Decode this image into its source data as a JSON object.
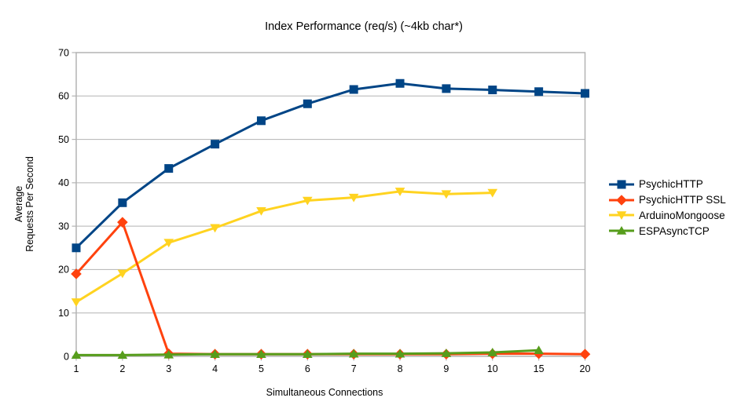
{
  "chart": {
    "title": "Index Performance (req/s) (~4kb char*)",
    "x_axis_title": "Simultaneous Connections",
    "y_axis_title_lines": [
      "Average",
      "Requests Per Second"
    ]
  },
  "chart_data": {
    "type": "line",
    "title": "Index Performance (req/s) (~4kb char*)",
    "xlabel": "Simultaneous Connections",
    "ylabel": "Average Requests Per Second",
    "categories": [
      "1",
      "2",
      "3",
      "4",
      "5",
      "6",
      "7",
      "8",
      "9",
      "10",
      "15",
      "20"
    ],
    "ylim": [
      0,
      70
    ],
    "y_ticks": [
      0,
      10,
      20,
      30,
      40,
      50,
      60,
      70
    ],
    "grid": "horizontal",
    "legend_position": "right",
    "series": [
      {
        "name": "PsychicHTTP",
        "color": "#004586",
        "marker": "square",
        "values": [
          25.0,
          35.4,
          43.3,
          48.9,
          54.3,
          58.2,
          61.5,
          62.9,
          61.7,
          61.4,
          61.0,
          60.6
        ]
      },
      {
        "name": "PsychicHTTP SSL",
        "color": "#ff420e",
        "marker": "diamond",
        "values": [
          19.0,
          30.9,
          0.6,
          0.5,
          0.5,
          0.5,
          0.5,
          0.5,
          0.5,
          0.6,
          0.6,
          0.5
        ]
      },
      {
        "name": "ArduinoMongoose",
        "color": "#ffd320",
        "marker": "triangle-down",
        "values": [
          12.5,
          19.1,
          26.2,
          29.6,
          33.5,
          35.9,
          36.6,
          38.0,
          37.4,
          37.7
        ]
      },
      {
        "name": "ESPAsyncTCP",
        "color": "#579d1c",
        "marker": "triangle-up",
        "values": [
          0.3,
          0.3,
          0.4,
          0.5,
          0.5,
          0.5,
          0.6,
          0.6,
          0.7,
          0.9,
          1.4
        ]
      }
    ],
    "draw_order": [
      0,
      2,
      1,
      3
    ]
  },
  "colors": {
    "grid": "#b3b3b3",
    "axis": "#b3b3b3",
    "text": "#000000",
    "background": "#ffffff"
  }
}
